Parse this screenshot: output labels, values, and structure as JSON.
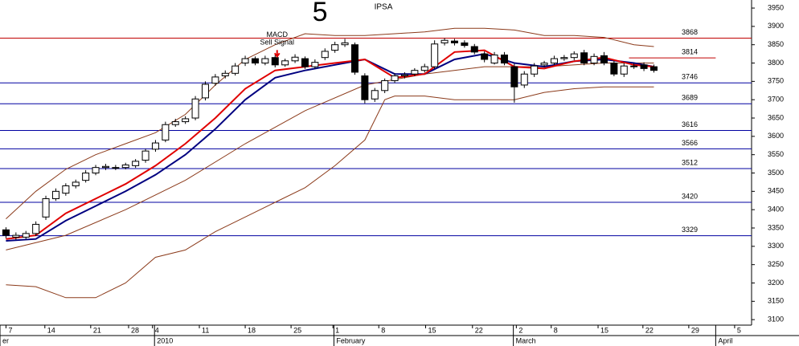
{
  "chart_data": {
    "type": "candlestick",
    "title": "IPSA",
    "annotations": [
      {
        "text": "5",
        "x": 31.5,
        "y": 3935,
        "color": "#1a1adc",
        "size": 34
      },
      {
        "text": "MACD",
        "x": 27.2,
        "y": 3876,
        "color": "#000000",
        "size": 9
      },
      {
        "text": "Sell Signal",
        "x": 27.2,
        "y": 3856,
        "color": "#000000",
        "size": 9
      }
    ],
    "signal_arrow": {
      "x": 27.2,
      "y": 3818,
      "color": "#e00000"
    },
    "x": [
      0,
      1,
      2,
      3,
      4,
      5,
      6,
      7,
      8,
      9,
      10,
      11,
      12,
      13,
      14,
      15,
      16,
      17,
      18,
      19,
      20,
      21,
      22,
      23,
      24,
      25,
      26,
      27,
      28,
      29,
      30,
      31,
      32,
      33,
      34,
      35,
      36,
      37,
      38,
      39,
      40,
      41,
      42,
      43,
      44,
      45,
      46,
      47,
      48,
      49,
      50,
      51,
      52,
      53,
      54,
      55,
      56,
      57,
      58,
      59,
      60,
      61,
      62,
      63,
      64,
      65
    ],
    "open": [
      3345,
      3325,
      3325,
      3335,
      3380,
      3430,
      3445,
      3465,
      3480,
      3500,
      3515,
      3515,
      3515,
      3520,
      3535,
      3565,
      3590,
      3632,
      3640,
      3650,
      3705,
      3745,
      3765,
      3772,
      3800,
      3812,
      3800,
      3815,
      3795,
      3806,
      3812,
      3790,
      3815,
      3835,
      3850,
      3850,
      3765,
      3702,
      3725,
      3752,
      3765,
      3770,
      3780,
      3790,
      3855,
      3860,
      3855,
      3845,
      3825,
      3800,
      3822,
      3790,
      3740,
      3770,
      3795,
      3800,
      3812,
      3815,
      3828,
      3800,
      3820,
      3800,
      3770,
      3790,
      3795,
      3790
    ],
    "high": [
      3352,
      3338,
      3342,
      3368,
      3438,
      3458,
      3472,
      3482,
      3508,
      3522,
      3525,
      3522,
      3528,
      3538,
      3566,
      3590,
      3640,
      3648,
      3655,
      3710,
      3750,
      3770,
      3780,
      3800,
      3820,
      3818,
      3820,
      3822,
      3812,
      3824,
      3818,
      3810,
      3840,
      3858,
      3866,
      3856,
      3772,
      3732,
      3758,
      3772,
      3775,
      3786,
      3798,
      3862,
      3868,
      3866,
      3862,
      3852,
      3832,
      3830,
      3830,
      3798,
      3778,
      3800,
      3806,
      3820,
      3822,
      3832,
      3836,
      3826,
      3830,
      3806,
      3800,
      3800,
      3802,
      3796
    ],
    "low": [
      3322,
      3318,
      3320,
      3328,
      3372,
      3424,
      3438,
      3458,
      3474,
      3494,
      3508,
      3508,
      3510,
      3514,
      3528,
      3558,
      3584,
      3626,
      3634,
      3644,
      3698,
      3738,
      3758,
      3766,
      3792,
      3794,
      3794,
      3788,
      3790,
      3800,
      3784,
      3784,
      3808,
      3828,
      3844,
      3768,
      3690,
      3694,
      3718,
      3746,
      3758,
      3764,
      3774,
      3784,
      3848,
      3848,
      3842,
      3824,
      3802,
      3796,
      3794,
      3692,
      3732,
      3762,
      3788,
      3794,
      3806,
      3808,
      3794,
      3794,
      3794,
      3764,
      3762,
      3784,
      3778,
      3774
    ],
    "close": [
      3330,
      3330,
      3335,
      3360,
      3430,
      3450,
      3465,
      3475,
      3500,
      3515,
      3518,
      3515,
      3522,
      3532,
      3560,
      3582,
      3632,
      3640,
      3648,
      3702,
      3742,
      3762,
      3772,
      3792,
      3812,
      3800,
      3812,
      3795,
      3806,
      3816,
      3790,
      3802,
      3832,
      3850,
      3855,
      3775,
      3700,
      3725,
      3752,
      3765,
      3768,
      3780,
      3790,
      3852,
      3862,
      3855,
      3848,
      3830,
      3810,
      3822,
      3800,
      3735,
      3770,
      3792,
      3800,
      3812,
      3815,
      3825,
      3800,
      3818,
      3800,
      3770,
      3792,
      3792,
      3785,
      3780
    ],
    "up_color": "#ffffff",
    "down_color": "#000000",
    "lines": [
      {
        "color": "#8b3a1a",
        "x": [
          0,
          3,
          6,
          9,
          12,
          15,
          18,
          21,
          24,
          27,
          30,
          33,
          36,
          39,
          42,
          45,
          48,
          51,
          54,
          57,
          60,
          63,
          65
        ],
        "values": [
          3375,
          3450,
          3510,
          3550,
          3580,
          3610,
          3660,
          3740,
          3810,
          3850,
          3880,
          3875,
          3875,
          3880,
          3885,
          3895,
          3895,
          3890,
          3875,
          3875,
          3870,
          3850,
          3845
        ]
      },
      {
        "color": "#8b3a1a",
        "x": [
          0,
          3,
          6,
          9,
          12,
          15,
          18,
          21,
          24,
          27,
          30,
          33,
          36,
          38,
          39,
          42,
          45,
          48,
          51,
          54,
          57,
          60,
          63,
          65
        ],
        "values": [
          3195,
          3190,
          3160,
          3160,
          3200,
          3270,
          3290,
          3340,
          3380,
          3420,
          3460,
          3520,
          3590,
          3700,
          3710,
          3710,
          3700,
          3700,
          3700,
          3720,
          3730,
          3735,
          3735,
          3735
        ]
      },
      {
        "color": "#8b3a1a",
        "x": [
          0,
          6,
          12,
          18,
          24,
          30,
          36,
          42,
          48,
          54,
          60,
          65
        ],
        "values": [
          3290,
          3330,
          3400,
          3480,
          3580,
          3670,
          3740,
          3770,
          3790,
          3790,
          3800,
          3800
        ]
      },
      {
        "color": "#000080",
        "x": [
          0,
          3,
          6,
          9,
          12,
          15,
          18,
          21,
          24,
          27,
          30,
          33,
          36,
          39,
          42,
          45,
          48,
          51,
          54,
          57,
          60,
          63,
          65
        ],
        "values": [
          3315,
          3320,
          3370,
          3410,
          3450,
          3495,
          3550,
          3620,
          3700,
          3760,
          3780,
          3795,
          3810,
          3770,
          3770,
          3810,
          3825,
          3800,
          3790,
          3805,
          3810,
          3800,
          3790
        ]
      },
      {
        "color": "#e00000",
        "x": [
          0,
          3,
          6,
          9,
          12,
          15,
          18,
          21,
          24,
          27,
          30,
          33,
          36,
          39,
          42,
          45,
          48,
          51,
          54,
          57,
          60,
          63,
          65
        ],
        "values": [
          3320,
          3330,
          3390,
          3430,
          3470,
          3520,
          3580,
          3650,
          3730,
          3780,
          3790,
          3800,
          3810,
          3760,
          3770,
          3830,
          3835,
          3790,
          3785,
          3805,
          3815,
          3795,
          3790
        ]
      }
    ],
    "levels": [
      {
        "value": 3868,
        "color": "#c00000",
        "from": -0.6,
        "to": 74.8
      },
      {
        "value": 3814,
        "color": "#c00000",
        "from": 62.5,
        "to": 71.2
      },
      {
        "value": 3746,
        "color": "#0000a0",
        "from": -0.6,
        "to": 74.8
      },
      {
        "value": 3689,
        "color": "#0000a0",
        "from": -0.6,
        "to": 74.8
      },
      {
        "value": 3616,
        "color": "#0000a0",
        "from": -0.6,
        "to": 74.8
      },
      {
        "value": 3566,
        "color": "#0000a0",
        "from": -0.6,
        "to": 74.8
      },
      {
        "value": 3512,
        "color": "#0000a0",
        "from": -0.6,
        "to": 74.8
      },
      {
        "value": 3420,
        "color": "#0000a0",
        "from": -0.6,
        "to": 74.8
      },
      {
        "value": 3329,
        "color": "#0000a0",
        "from": -0.6,
        "to": 74.8
      }
    ],
    "xlim": [
      -0.6,
      74.8
    ],
    "ylim": [
      3085,
      3972
    ],
    "yticks": [
      3100,
      3150,
      3200,
      3250,
      3300,
      3350,
      3400,
      3450,
      3500,
      3550,
      3600,
      3650,
      3700,
      3750,
      3800,
      3850,
      3900,
      3950
    ],
    "xticks": [
      {
        "value": 0,
        "label": "7"
      },
      {
        "value": 3.9,
        "label": "14"
      },
      {
        "value": 8.5,
        "label": "21"
      },
      {
        "value": 12.3,
        "label": "28"
      },
      {
        "value": 14.7,
        "label": "4"
      },
      {
        "value": 19.4,
        "label": "11"
      },
      {
        "value": 24.0,
        "label": "18"
      },
      {
        "value": 28.6,
        "label": "25"
      },
      {
        "value": 32.8,
        "label": "1"
      },
      {
        "value": 37.4,
        "label": "8"
      },
      {
        "value": 42.1,
        "label": "15"
      },
      {
        "value": 46.8,
        "label": "22"
      },
      {
        "value": 51.2,
        "label": "2"
      },
      {
        "value": 54.7,
        "label": "8"
      },
      {
        "value": 59.4,
        "label": "15"
      },
      {
        "value": 63.9,
        "label": "22"
      },
      {
        "value": 68.5,
        "label": "29"
      },
      {
        "value": 73.1,
        "label": "5"
      }
    ],
    "month_ticks": [
      {
        "value": -0.6,
        "label": "er"
      },
      {
        "value": 14.9,
        "label": "2010"
      },
      {
        "value": 32.9,
        "label": "February"
      },
      {
        "value": 50.9,
        "label": "March"
      },
      {
        "value": 71.2,
        "label": "April"
      }
    ]
  }
}
